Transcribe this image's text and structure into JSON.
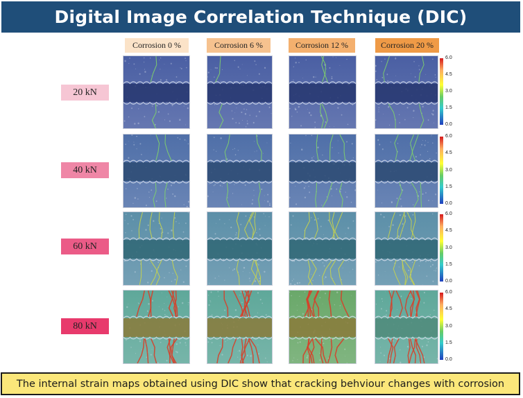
{
  "title": "Digital Image Correlation Technique (DIC)",
  "columns": [
    {
      "label": "Corrosion 0 %",
      "color": "#fbe3c8"
    },
    {
      "label": "Corrosion 6 %",
      "color": "#f6c28f"
    },
    {
      "label": "Corrosion 12 %",
      "color": "#f4b06e"
    },
    {
      "label": "Corrosion 20 %",
      "color": "#ef9a46"
    }
  ],
  "rows": [
    {
      "label": "20 kN",
      "color": "#f6c6d4"
    },
    {
      "label": "40 kN",
      "color": "#ef86a6"
    },
    {
      "label": "60 kN",
      "color": "#eb5b87"
    },
    {
      "label": "80 kN",
      "color": "#e83a6c"
    }
  ],
  "scale": {
    "ticks": [
      "6.0",
      "4.5",
      "3.0",
      "1.5",
      "0.0"
    ]
  },
  "caption": "The internal strain maps obtained using DIC show that cracking behviour changes with corrosion"
}
